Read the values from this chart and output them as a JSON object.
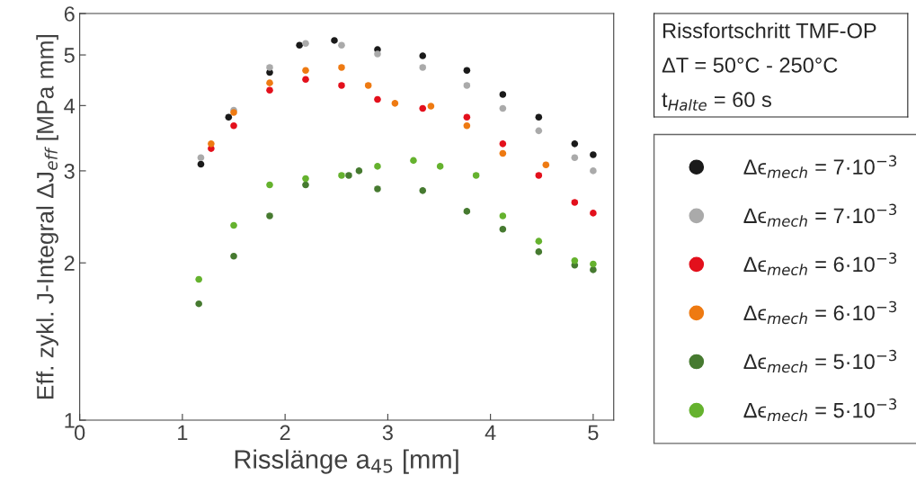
{
  "chart_data": {
    "type": "scatter",
    "xlabel": "Risslänge a$_{45}$ [mm]",
    "ylabel": "Eff. zykl. J-Integral ΔJ$_{eff}$ [MPa mm]",
    "annotations": [
      "Rissfortschritt TMF-OP",
      "ΔT = 50°C - 250°C",
      "t$_{Halte}$ = 60 s"
    ],
    "log": "y",
    "xlim": [
      0,
      5.2
    ],
    "xticks": [
      0,
      1,
      2,
      3,
      4,
      5
    ],
    "ylim": [
      1,
      6
    ],
    "yticks": [
      1,
      2,
      3,
      4,
      5,
      6
    ],
    "grid": false,
    "legend": "right",
    "marker": "circle",
    "series": [
      {
        "name": "Δϵ$_{mech}$ = 7·10$^{−3}$",
        "color": "#1a1a1a",
        "x": [
          1.18,
          1.45,
          1.85,
          2.14,
          2.48,
          2.9,
          3.34,
          3.77,
          4.12,
          4.47,
          4.82,
          5.0
        ],
        "values": [
          3.09,
          3.8,
          4.63,
          5.22,
          5.33,
          5.12,
          4.98,
          4.67,
          4.2,
          3.8,
          3.38,
          3.22
        ]
      },
      {
        "name": "Δϵ$_{mech}$ = 7·10$^{−3}$",
        "color": "#aaaaaa",
        "x": [
          1.18,
          1.5,
          1.85,
          2.2,
          2.55,
          2.9,
          3.34,
          3.77,
          4.12,
          4.47,
          4.82,
          5.0
        ],
        "values": [
          3.18,
          3.92,
          4.73,
          5.26,
          5.22,
          5.02,
          4.73,
          4.37,
          3.95,
          3.58,
          3.18,
          3.0
        ]
      },
      {
        "name": "Δϵ$_{mech}$ = 6·10$^{−3}$",
        "color": "#e3101c",
        "x": [
          1.28,
          1.5,
          1.85,
          2.2,
          2.55,
          2.9,
          3.34,
          3.77,
          4.12,
          4.47,
          4.82,
          5.0
        ],
        "values": [
          3.31,
          3.66,
          4.28,
          4.49,
          4.37,
          4.11,
          3.95,
          3.8,
          3.38,
          2.94,
          2.61,
          2.49
        ]
      },
      {
        "name": "Δϵ$_{mech}$ = 6·10$^{−3}$",
        "color": "#ee7a12",
        "x": [
          1.28,
          1.5,
          1.85,
          2.2,
          2.55,
          2.81,
          3.07,
          3.42,
          3.77,
          4.12,
          4.54
        ],
        "values": [
          3.38,
          3.88,
          4.42,
          4.67,
          4.73,
          4.37,
          4.04,
          3.99,
          3.66,
          3.24,
          3.08
        ]
      },
      {
        "name": "Δϵ$_{mech}$ = 5·10$^{−3}$",
        "color": "#467a30",
        "x": [
          1.16,
          1.5,
          1.85,
          2.2,
          2.62,
          2.72,
          2.9,
          3.34,
          3.77,
          4.12,
          4.47,
          4.82,
          5.0
        ],
        "values": [
          1.67,
          2.06,
          2.46,
          2.82,
          2.94,
          3.0,
          2.77,
          2.75,
          2.51,
          2.32,
          2.1,
          1.98,
          1.94
        ]
      },
      {
        "name": "Δϵ$_{mech}$ = 5·10$^{−3}$",
        "color": "#65b22e",
        "x": [
          1.16,
          1.5,
          1.85,
          2.2,
          2.55,
          2.9,
          3.25,
          3.51,
          3.86,
          4.12,
          4.47,
          4.82,
          5.0
        ],
        "values": [
          1.86,
          2.36,
          2.82,
          2.9,
          2.94,
          3.06,
          3.14,
          3.06,
          2.94,
          2.46,
          2.2,
          2.02,
          1.99
        ]
      }
    ]
  }
}
